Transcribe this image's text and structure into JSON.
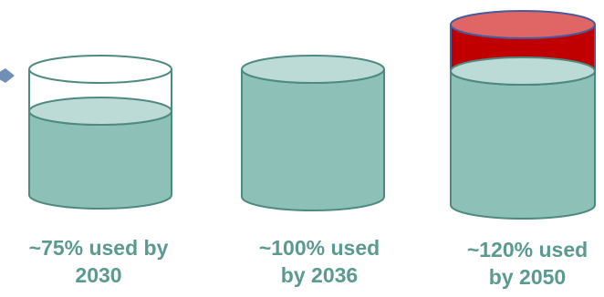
{
  "colors": {
    "fill": "#8dc0b6",
    "fill_top": "#bddbd6",
    "outline": "#4e8a80",
    "overflow_fill": "#c00000",
    "overflow_top": "#e06666",
    "overflow_outline": "#4a5a9a",
    "caption": "#5a9a90",
    "arrow": "#6f8fb5"
  },
  "icons": {
    "pointer": "arrow-right-icon"
  },
  "cylinders": [
    {
      "fill_percent": 75,
      "caption_line1": "~75% used by",
      "caption_line2": "2030"
    },
    {
      "fill_percent": 100,
      "caption_line1": "~100% used",
      "caption_line2": "by 2036"
    },
    {
      "fill_percent": 120,
      "caption_line1": "~120% used",
      "caption_line2": "by 2050"
    }
  ]
}
